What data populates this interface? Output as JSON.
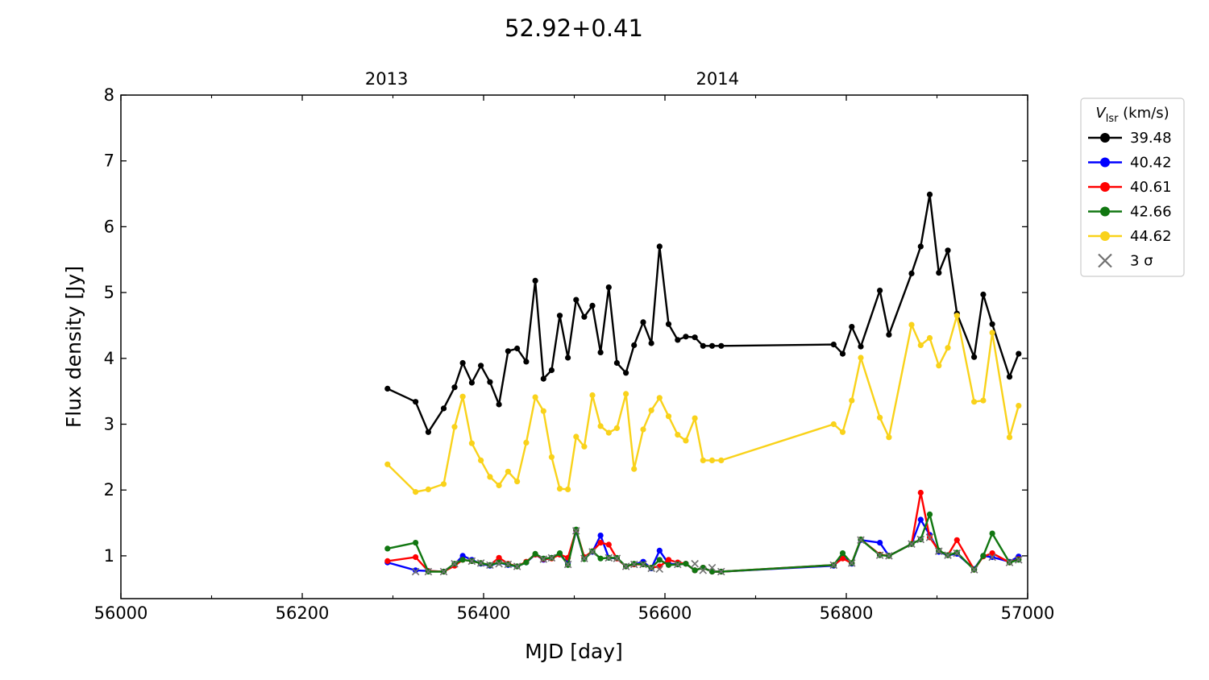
{
  "chart_data": {
    "type": "line",
    "title": "52.92+0.41",
    "xlabel": "MJD [day]",
    "ylabel": "Flux density [Jy]",
    "xlim": [
      56000,
      57000
    ],
    "ylim": [
      0.35,
      8
    ],
    "xticks": [
      56000,
      56200,
      56400,
      56600,
      56800,
      57000
    ],
    "yticks": [
      1,
      2,
      3,
      4,
      5,
      6,
      7,
      8
    ],
    "top_axis": {
      "ticks": [
        {
          "value": 56293,
          "label": "2013"
        },
        {
          "value": 56658,
          "label": "2014"
        }
      ]
    },
    "grid": false,
    "legend": {
      "position": "outside-right",
      "title_main": "V",
      "title_sub": "lsr",
      "title_rest": " (km/s)",
      "threshold_label": "3 σ",
      "threshold_color": "#707070"
    },
    "x": [
      56294,
      56325,
      56339,
      56356,
      56368,
      56377,
      56387,
      56397,
      56407,
      56417,
      56427,
      56437,
      56447,
      56457,
      56466,
      56475,
      56484,
      56493,
      56502,
      56511,
      56520,
      56529,
      56538,
      56547,
      56557,
      56566,
      56576,
      56585,
      56594,
      56604,
      56614,
      56623,
      56633,
      56642,
      56652,
      56662,
      56786,
      56796,
      56806,
      56816,
      56837,
      56847,
      56872,
      56882,
      56892,
      56902,
      56912,
      56922,
      56941,
      56951,
      56961,
      56980,
      56990
    ],
    "series": [
      {
        "name": "39.48",
        "color": "#000000",
        "values": [
          3.54,
          3.34,
          2.88,
          3.24,
          3.56,
          3.93,
          3.63,
          3.89,
          3.64,
          3.3,
          4.11,
          4.15,
          3.95,
          5.18,
          3.69,
          3.82,
          4.65,
          4.01,
          4.89,
          4.63,
          4.8,
          4.09,
          5.08,
          3.93,
          3.78,
          4.2,
          4.55,
          4.23,
          5.7,
          4.52,
          4.28,
          4.33,
          4.32,
          4.19,
          4.19,
          4.19,
          4.21,
          4.07,
          4.48,
          4.18,
          5.03,
          4.36,
          5.29,
          5.7,
          6.49,
          5.3,
          5.64,
          4.68,
          4.02,
          4.97,
          4.52,
          3.72,
          4.07
        ]
      },
      {
        "name": "40.42",
        "color": "#0000ff",
        "values": [
          0.9,
          0.78,
          0.77,
          0.76,
          0.87,
          1.0,
          0.94,
          0.88,
          0.85,
          0.9,
          0.86,
          0.84,
          0.9,
          1.02,
          0.94,
          0.97,
          1.02,
          0.89,
          1.38,
          0.96,
          1.06,
          1.31,
          0.97,
          0.96,
          0.84,
          0.87,
          0.91,
          0.81,
          1.08,
          0.88,
          0.87,
          0.88,
          0.78,
          0.82,
          0.76,
          0.76,
          0.85,
          0.98,
          0.88,
          1.24,
          1.2,
          1.0,
          1.18,
          1.55,
          1.32,
          1.06,
          1.01,
          1.03,
          0.8,
          1.0,
          0.98,
          0.91,
          0.99
        ]
      },
      {
        "name": "40.61",
        "color": "#ff0000",
        "values": [
          0.92,
          0.98,
          0.77,
          0.76,
          0.85,
          0.94,
          0.92,
          0.89,
          0.86,
          0.97,
          0.88,
          0.84,
          0.91,
          1.02,
          0.95,
          0.96,
          1.02,
          0.97,
          1.39,
          0.98,
          1.07,
          1.2,
          1.17,
          0.96,
          0.84,
          0.87,
          0.87,
          0.82,
          0.84,
          0.94,
          0.9,
          0.88,
          0.78,
          0.82,
          0.76,
          0.76,
          0.86,
          0.96,
          0.89,
          1.25,
          1.02,
          1.0,
          1.18,
          1.96,
          1.28,
          1.08,
          1.01,
          1.24,
          0.79,
          0.99,
          1.04,
          0.9,
          0.95
        ]
      },
      {
        "name": "42.66",
        "color": "#117711",
        "values": [
          1.11,
          1.2,
          0.76,
          0.76,
          0.88,
          0.94,
          0.92,
          0.89,
          0.86,
          0.9,
          0.87,
          0.84,
          0.9,
          1.03,
          0.96,
          0.97,
          1.04,
          0.86,
          1.4,
          0.95,
          1.07,
          0.96,
          0.97,
          0.97,
          0.84,
          0.88,
          0.87,
          0.82,
          0.94,
          0.86,
          0.87,
          0.88,
          0.78,
          0.82,
          0.76,
          0.76,
          0.86,
          1.04,
          0.89,
          1.25,
          1.01,
          1.0,
          1.18,
          1.25,
          1.63,
          1.08,
          1.01,
          1.05,
          0.79,
          1.0,
          1.34,
          0.9,
          0.94
        ]
      },
      {
        "name": "44.62",
        "color": "#f9d21a",
        "values": [
          2.39,
          1.97,
          2.01,
          2.09,
          2.96,
          3.42,
          2.71,
          2.45,
          2.2,
          2.07,
          2.28,
          2.13,
          2.72,
          3.41,
          3.2,
          2.5,
          2.02,
          2.01,
          2.81,
          2.66,
          3.44,
          2.97,
          2.87,
          2.94,
          3.46,
          2.32,
          2.92,
          3.21,
          3.4,
          3.12,
          2.84,
          2.75,
          3.09,
          2.45,
          2.45,
          2.45,
          3.0,
          2.88,
          3.36,
          4.01,
          3.1,
          2.8,
          4.51,
          4.2,
          4.31,
          3.89,
          4.16,
          4.65,
          3.34,
          3.36,
          4.39,
          2.8,
          3.28
        ]
      }
    ],
    "threshold_markers": {
      "x": [
        56325,
        56339,
        56356,
        56368,
        56387,
        56397,
        56407,
        56417,
        56427,
        56437,
        56466,
        56475,
        56493,
        56502,
        56511,
        56520,
        56538,
        56547,
        56557,
        56566,
        56576,
        56585,
        56594,
        56614,
        56633,
        56642,
        56652,
        56662,
        56786,
        56806,
        56816,
        56837,
        56847,
        56872,
        56882,
        56892,
        56902,
        56912,
        56922,
        56941,
        56961,
        56980,
        56990
      ],
      "y": [
        0.76,
        0.76,
        0.76,
        0.88,
        0.92,
        0.89,
        0.86,
        0.88,
        0.87,
        0.84,
        0.95,
        0.97,
        0.87,
        1.38,
        0.96,
        1.06,
        0.97,
        0.96,
        0.84,
        0.87,
        0.87,
        0.81,
        0.8,
        0.87,
        0.88,
        0.78,
        0.82,
        0.76,
        0.86,
        0.89,
        1.24,
        1.01,
        1.0,
        1.18,
        1.25,
        1.28,
        1.07,
        1.01,
        1.04,
        0.79,
        0.98,
        0.9,
        0.94
      ]
    }
  }
}
